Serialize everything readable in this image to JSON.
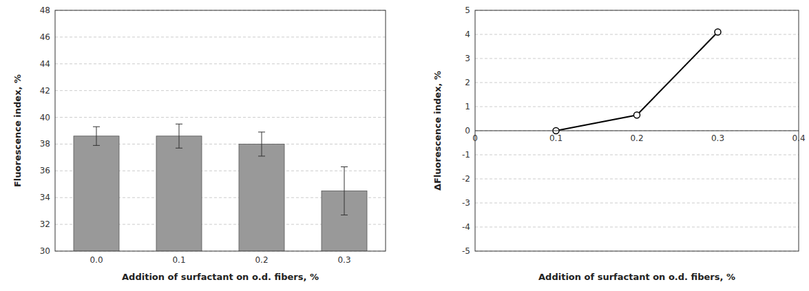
{
  "chart_data": [
    {
      "type": "bar",
      "categories": [
        "0.0",
        "0.1",
        "0.2",
        "0.3"
      ],
      "values": [
        38.6,
        38.6,
        38.0,
        34.5
      ],
      "errors": [
        0.7,
        0.9,
        0.9,
        1.8
      ],
      "color": "#999999",
      "x_label": "Addition  of surfactant on o.d. fibers, %",
      "y_label": "Fluorescence index, %",
      "ylim": [
        30,
        48
      ],
      "yticks": [
        30,
        32,
        34,
        36,
        38,
        40,
        42,
        44,
        46,
        48
      ],
      "grid": true
    },
    {
      "type": "line",
      "x": [
        0.1,
        0.2,
        0.3
      ],
      "values": [
        0.0,
        0.65,
        4.1
      ],
      "color": "#000000",
      "marker": "circle",
      "x_label": "Addition  of surfactant on o.d. fibers, %",
      "y_label": "ΔFluorescence index, %",
      "xlim": [
        0,
        0.4
      ],
      "xticks": [
        0,
        0.1,
        0.2,
        0.3,
        0.4
      ],
      "ylim": [
        -5,
        5
      ],
      "yticks": [
        -5,
        -4,
        -3,
        -2,
        -1,
        0,
        1,
        2,
        3,
        4,
        5
      ],
      "grid": true
    }
  ]
}
